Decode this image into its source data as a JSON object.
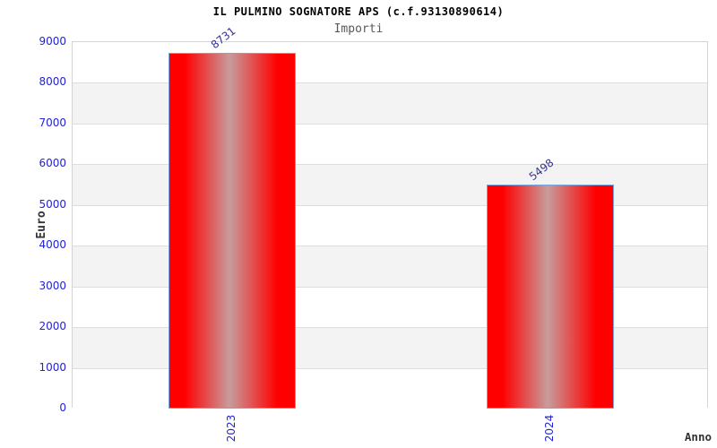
{
  "chart_data": {
    "type": "bar",
    "title": "IL PULMINO SOGNATORE APS (c.f.93130890614)",
    "subtitle": "Importi",
    "xlabel": "Anno",
    "ylabel": "Euro",
    "categories": [
      "2023",
      "2024"
    ],
    "values": [
      8731,
      5498
    ],
    "value_labels": [
      "8731",
      "5498"
    ],
    "ylim": [
      0,
      9000
    ],
    "yticks": [
      0,
      1000,
      2000,
      3000,
      4000,
      5000,
      6000,
      7000,
      8000,
      9000
    ],
    "grid": "horizontal-bands-alternating",
    "legend": "none",
    "colors": {
      "bar_red": "#ff0000",
      "bar_gradient_center": "#c79c9c",
      "bar_border": "#78a5dc",
      "tick_label_blue": "#2222d6",
      "value_label_navy": "#333399",
      "band_gray": "#f3f3f3",
      "band_white": "#ffffff",
      "grid_line": "#dedede",
      "plot_border": "#d4d4d4",
      "title_color": "#000000",
      "subtitle_color": "#595959",
      "axis_label_color": "#333333"
    }
  }
}
